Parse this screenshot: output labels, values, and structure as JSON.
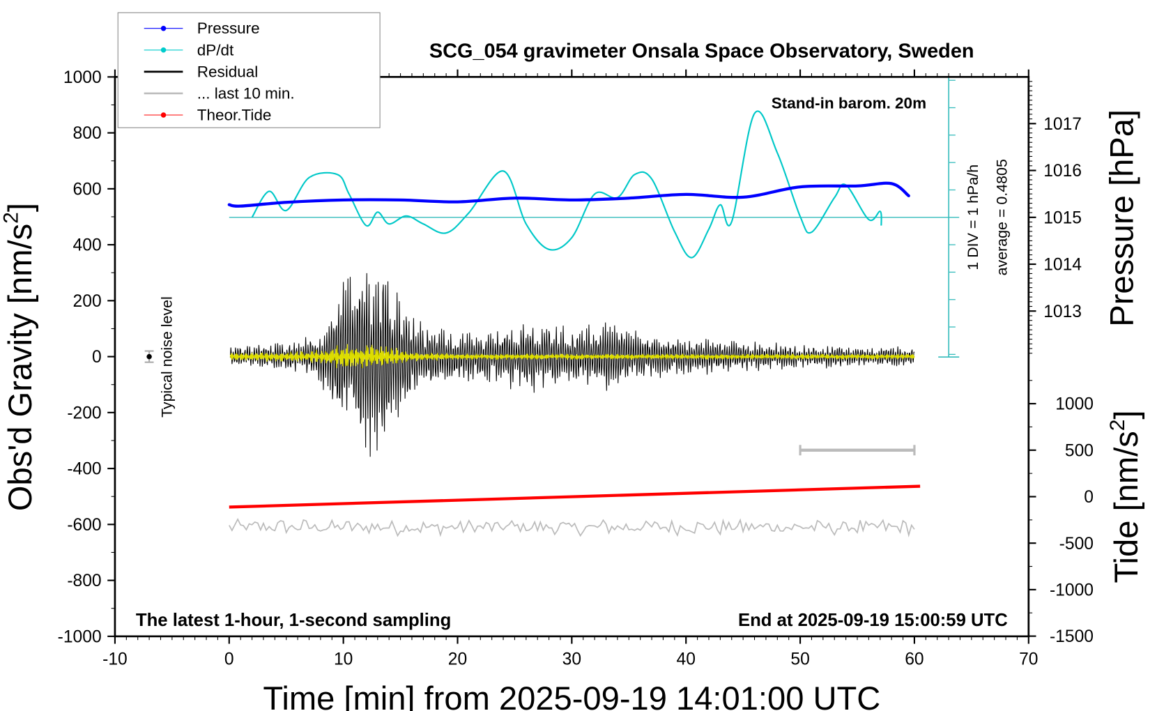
{
  "chart_data": {
    "type": "line",
    "title": "SCG_054 gravimeter Onsala Space Observatory, Sweden",
    "xlabel": "Time [min] from 2025-09-19 14:01:00 UTC",
    "xlim": [
      -10,
      70
    ],
    "xticks": [
      "-10",
      "0",
      "10",
      "20",
      "30",
      "40",
      "50",
      "60",
      "70"
    ],
    "ylabel": {
      "main": "Obs'd Gravity [nm/s",
      "sup": "2",
      "end": "]"
    },
    "ylim": [
      -1000,
      1000
    ],
    "yticks": [
      "1000",
      "800",
      "600",
      "400",
      "200",
      "0",
      "-200",
      "-400",
      "-600",
      "-800",
      "-1000"
    ],
    "y2_pressure": {
      "label": "Pressure [hPa]",
      "ticks": [
        "1017",
        "1016",
        "1015",
        "1014",
        "1013"
      ],
      "unit_per_div": 1
    },
    "y2_tide": {
      "label": {
        "main": "Tide [nm/s",
        "sup": "2",
        "end": "]"
      },
      "ticks": [
        "1000",
        "500",
        "0",
        "-500",
        "-1000",
        "-1500"
      ]
    },
    "annotations": {
      "barometer": "Stand-in barom. 20m",
      "div": "1 DIV = 1 hPa/h",
      "average": "average = 0.4805",
      "noise": "Typical noise level",
      "left_footer": "The latest 1-hour, 1-second sampling",
      "right_footer": "End at 2025-09-19 15:00:59 UTC"
    },
    "legend": {
      "placement": "top-left",
      "entries": [
        {
          "label": "Pressure",
          "color": "#0000ff",
          "marker": true
        },
        {
          "label": "dP/dt",
          "color": "#00cccc",
          "marker": true
        },
        {
          "label": "Residual",
          "color": "#000000",
          "marker": false
        },
        {
          "label": "... last 10 min.",
          "color": "#bbbbbb",
          "marker": false
        },
        {
          "label": "Theor.Tide",
          "color": "#ff0000",
          "marker": true
        }
      ]
    },
    "series": [
      {
        "name": "Pressure",
        "unit": "hPa",
        "color": "#0000ff",
        "x": [
          0,
          1,
          5,
          10,
          15,
          20,
          25,
          30,
          35,
          40,
          45,
          50,
          55,
          58,
          59.5
        ],
        "y": [
          1015.27,
          1015.24,
          1015.32,
          1015.37,
          1015.37,
          1015.33,
          1015.41,
          1015.37,
          1015.41,
          1015.49,
          1015.43,
          1015.65,
          1015.67,
          1015.72,
          1015.46
        ]
      },
      {
        "name": "dP/dt",
        "unit": "hPa/h",
        "color": "#00c8c8",
        "average": 0.4805,
        "x": [
          2,
          3.5,
          5,
          7,
          9.5,
          10.5,
          12,
          13,
          14,
          15.5,
          17,
          19,
          21,
          24,
          26,
          28,
          30,
          32,
          34,
          35.5,
          37,
          39,
          40.5,
          42,
          43,
          44,
          46,
          48,
          50,
          51,
          53,
          54,
          56,
          57,
          57.1
        ],
        "y": [
          0.48,
          1.43,
          0.73,
          1.93,
          2.04,
          1.33,
          0.18,
          0.67,
          0.24,
          0.53,
          0.24,
          -0.09,
          0.65,
          2.17,
          0.24,
          -0.69,
          -0.26,
          1.33,
          1.2,
          2.04,
          1.88,
          -0.04,
          -0.99,
          0.05,
          0.94,
          0.32,
          4.27,
          2.83,
          0.51,
          -0.06,
          1.2,
          1.66,
          0.4,
          0.7,
          0.18
        ]
      },
      {
        "name": "Residual",
        "unit": "nm/s^2",
        "color": "#000000",
        "offset": 0,
        "envelope_x": [
          0,
          5,
          8,
          9.5,
          11,
          12.5,
          13.5,
          15,
          17,
          20,
          23,
          25,
          27,
          30,
          32,
          33,
          36,
          40,
          45,
          50,
          60
        ],
        "envelope_amp": [
          40,
          50,
          100,
          260,
          350,
          380,
          420,
          220,
          120,
          90,
          100,
          140,
          150,
          100,
          130,
          130,
          90,
          70,
          60,
          45,
          35
        ]
      },
      {
        "name": "Residual (filtered)",
        "unit": "nm/s^2",
        "color": "#dddd00",
        "envelope_x": [
          0,
          8,
          10,
          12,
          14,
          16,
          20,
          60
        ],
        "envelope_amp": [
          15,
          25,
          50,
          45,
          40,
          20,
          12,
          10
        ]
      },
      {
        "name": "... last 10 min.",
        "unit": "nm/s^2",
        "color": "#bbbbbb",
        "offset": -610,
        "amplitude": 45,
        "x": [
          0,
          60
        ]
      },
      {
        "name": "Theor.Tide",
        "unit": "nm/s^2",
        "color": "#ff0000",
        "x": [
          0,
          60.5
        ],
        "y": [
          -112,
          112
        ]
      },
      {
        "name": "scale-bar",
        "unit": "nm/s^2",
        "color": "#bbbbbb",
        "x": [
          50,
          60
        ],
        "y": [
          500,
          500
        ]
      },
      {
        "name": "typical-noise",
        "x": [
          -7
        ],
        "y": [
          0
        ],
        "err": 20
      }
    ],
    "grid": false
  }
}
